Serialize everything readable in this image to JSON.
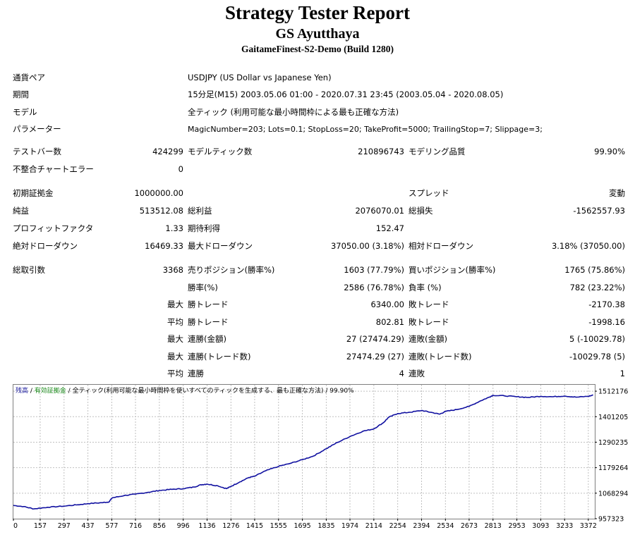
{
  "header": {
    "title": "Strategy Tester Report",
    "subtitle": "GS Ayutthaya",
    "server": "GaitameFinest-S2-Demo (Build 1280)"
  },
  "info": {
    "pair_label": "通貨ペア",
    "pair_value": "USDJPY (US Dollar vs Japanese Yen)",
    "period_label": "期間",
    "period_value": "15分足(M15) 2003.05.06 01:00 - 2020.07.31 23:45 (2003.05.04 - 2020.08.05)",
    "model_label": "モデル",
    "model_value": "全ティック (利用可能な最小時間枠による最も正確な方法)",
    "params_label": "パラメーター",
    "params_value": "MagicNumber=203; Lots=0.1; StopLoss=20; TakeProfit=5000; TrailingStop=7; Slippage=3;"
  },
  "bars": {
    "bars_label": "テストバー数",
    "bars_value": "424299",
    "ticks_label": "モデルティック数",
    "ticks_value": "210896743",
    "quality_label": "モデリング品質",
    "quality_value": "99.90%",
    "errors_label": "不整合チャートエラー",
    "errors_value": "0"
  },
  "stats": {
    "deposit_label": "初期証拠金",
    "deposit_value": "1000000.00",
    "spread_label": "スプレッド",
    "spread_value": "変動",
    "net_label": "純益",
    "net_value": "513512.08",
    "gross_profit_label": "総利益",
    "gross_profit_value": "2076070.01",
    "gross_loss_label": "総損失",
    "gross_loss_value": "-1562557.93",
    "pf_label": "プロフィットファクタ",
    "pf_value": "1.33",
    "payoff_label": "期待利得",
    "payoff_value": "152.47",
    "abs_dd_label": "絶対ドローダウン",
    "abs_dd_value": "16469.33",
    "max_dd_label": "最大ドローダウン",
    "max_dd_value": "37050.00 (3.18%)",
    "rel_dd_label": "相対ドローダウン",
    "rel_dd_value": "3.18% (37050.00)"
  },
  "trades": {
    "total_label": "総取引数",
    "total_value": "3368",
    "short_label": "売りポジション(勝率%)",
    "short_value": "1603 (77.79%)",
    "long_label": "買いポジション(勝率%)",
    "long_value": "1765 (75.86%)",
    "win_label": "勝率(%)",
    "win_value": "2586 (76.78%)",
    "loss_label": "負率 (%)",
    "loss_value": "782 (23.22%)",
    "max_prefix": "最大",
    "avg_prefix": "平均",
    "largest_win_label": "勝トレード",
    "largest_win_value": "6340.00",
    "largest_loss_label": "敗トレード",
    "largest_loss_value": "-2170.38",
    "avg_win_label": "勝トレード",
    "avg_win_value": "802.81",
    "avg_loss_label": "敗トレード",
    "avg_loss_value": "-1998.16",
    "max_consec_win_label": "連勝(金額)",
    "max_consec_win_value": "27 (27474.29)",
    "max_consec_loss_label": "連敗(金額)",
    "max_consec_loss_value": "5 (-10029.78)",
    "max_consec_profit_label": "連勝(トレード数)",
    "max_consec_profit_value": "27474.29 (27)",
    "max_consec_lossamt_label": "連敗(トレード数)",
    "max_consec_lossamt_value": "-10029.78 (5)",
    "avg_consec_win_label": "連勝",
    "avg_consec_win_value": "4",
    "avg_consec_loss_label": "連敗",
    "avg_consec_loss_value": "1"
  },
  "legend": {
    "balance": "残高",
    "sep1": " / ",
    "equity": "有効証拠金",
    "sep2": " / ",
    "model_text": "全ティック(利用可能な最小時間枠を使いすべてのティックを生成する、最も正確な方法)",
    "sep3": " / ",
    "quality": "99.90%"
  },
  "chart_data": {
    "type": "line",
    "x_ticks": [
      0,
      157,
      297,
      437,
      577,
      716,
      856,
      996,
      1136,
      1276,
      1415,
      1555,
      1695,
      1835,
      1974,
      2114,
      2254,
      2394,
      2534,
      2673,
      2813,
      2953,
      3093,
      3233,
      3372
    ],
    "y_ticks": [
      957323,
      1068294,
      1179264,
      1290235,
      1401205,
      1512176
    ],
    "xlim": [
      0,
      3410
    ],
    "ylim": [
      957323,
      1540000
    ],
    "grid": true,
    "colors": {
      "balance": "#1010a0",
      "grid": "#c0c0c0",
      "axis": "#000000"
    },
    "series": [
      {
        "name": "残高",
        "x": [
          0,
          60,
          120,
          200,
          297,
          380,
          437,
          520,
          560,
          580,
          650,
          716,
          790,
          856,
          930,
          996,
          1060,
          1100,
          1136,
          1200,
          1250,
          1276,
          1330,
          1380,
          1415,
          1480,
          1555,
          1620,
          1695,
          1760,
          1835,
          1900,
          1974,
          2050,
          2114,
          2170,
          2200,
          2254,
          2320,
          2394,
          2450,
          2500,
          2534,
          2600,
          2673,
          2740,
          2790,
          2813,
          2880,
          2953,
          3020,
          3093,
          3160,
          3233,
          3300,
          3372,
          3400
        ],
        "y": [
          1015000,
          1010000,
          1000000,
          1007000,
          1012000,
          1018000,
          1023000,
          1027000,
          1030000,
          1048000,
          1058000,
          1064000,
          1072000,
          1080000,
          1085000,
          1088000,
          1095000,
          1105000,
          1108000,
          1100000,
          1088000,
          1098000,
          1118000,
          1136000,
          1142000,
          1166000,
          1185000,
          1197000,
          1214000,
          1230000,
          1262000,
          1289000,
          1315000,
          1338000,
          1348000,
          1375000,
          1398000,
          1415000,
          1420000,
          1428000,
          1420000,
          1412000,
          1424000,
          1432000,
          1446000,
          1470000,
          1486000,
          1494000,
          1492000,
          1488000,
          1485000,
          1490000,
          1488000,
          1491000,
          1486000,
          1490000,
          1495000
        ]
      }
    ]
  }
}
